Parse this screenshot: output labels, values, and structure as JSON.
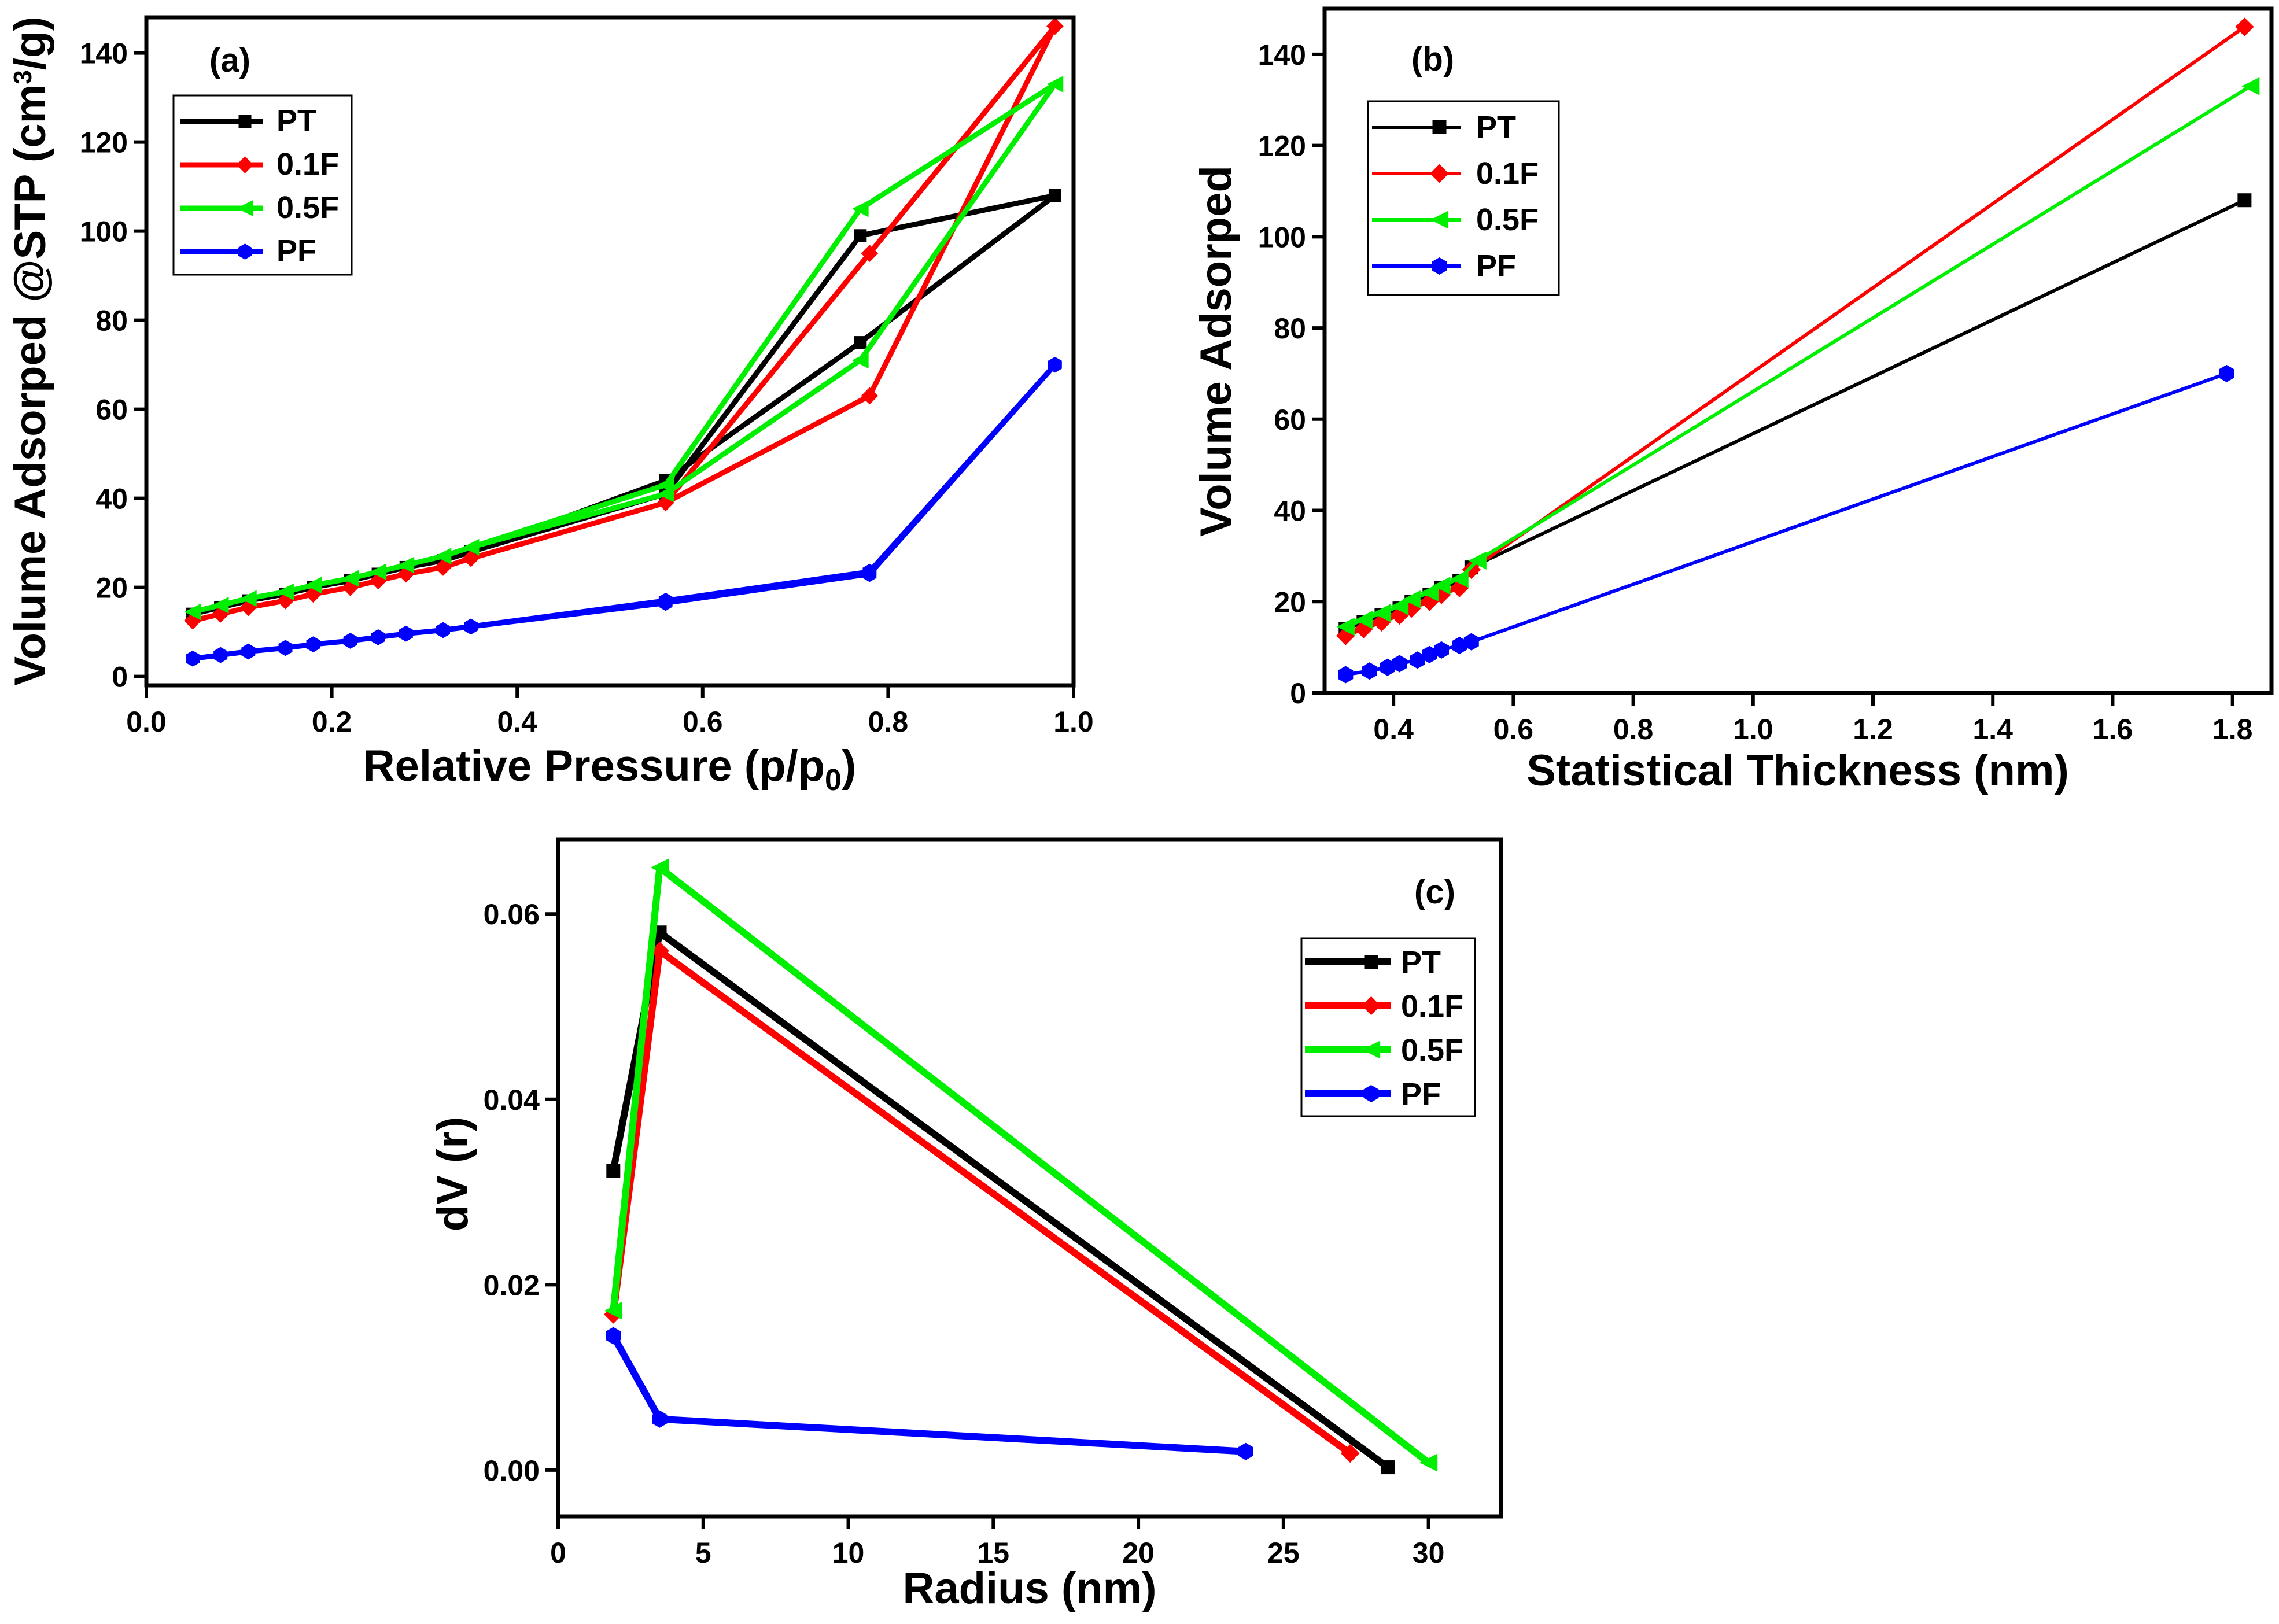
{
  "charts": [
    {
      "id": "a",
      "panel_label": "(a)",
      "xlabel": "Relative Pressure  (p/p",
      "xlabel_sub": "0",
      "xlabel_end": ")",
      "ylabel": "Volume Adsorped @STP (cm",
      "ylabel_sup": "3",
      "ylabel_end": "/g)",
      "xticks": [
        "0.0",
        "0.2",
        "0.4",
        "0.6",
        "0.8",
        "1.0"
      ],
      "yticks": [
        "0",
        "20",
        "40",
        "60",
        "80",
        "100",
        "120",
        "140"
      ],
      "legend": [
        "PT",
        "0.1F",
        "0.5F",
        "PF"
      ]
    },
    {
      "id": "b",
      "panel_label": "(b)",
      "xlabel": "Statistical Thickness  (nm)",
      "ylabel": "Volume Adsorped",
      "xticks": [
        "0.4",
        "0.6",
        "0.8",
        "1.0",
        "1.2",
        "1.4",
        "1.6",
        "1.8"
      ],
      "yticks": [
        "0",
        "20",
        "40",
        "60",
        "80",
        "100",
        "120",
        "140"
      ],
      "legend": [
        "PT",
        "0.1F",
        "0.5F",
        "PF"
      ]
    },
    {
      "id": "c",
      "panel_label": "(c)",
      "xlabel": "Radius  (nm)",
      "ylabel": "dV (r)",
      "xticks": [
        "0",
        "5",
        "10",
        "15",
        "20",
        "25",
        "30"
      ],
      "yticks": [
        "0.00",
        "0.02",
        "0.04",
        "0.06"
      ],
      "legend": [
        "PT",
        "0.1F",
        "0.5F",
        "PF"
      ]
    }
  ],
  "chart_data": [
    {
      "type": "line",
      "panel": "(a)",
      "xlabel": "Relative Pressure (p/p0)",
      "ylabel": "Volume Adsorped @STP (cm3/g)",
      "xlim": [
        0.0,
        1.0
      ],
      "ylim": [
        -2,
        148
      ],
      "series": [
        {
          "name": "PT",
          "color": "#000000",
          "marker": "square",
          "x": [
            0.05,
            0.08,
            0.11,
            0.15,
            0.18,
            0.22,
            0.25,
            0.28,
            0.32,
            0.35,
            0.56,
            0.77,
            0.98,
            0.77,
            0.56,
            0.35,
            0.32,
            0.28,
            0.25,
            0.22,
            0.18,
            0.15,
            0.11,
            0.08,
            0.05
          ],
          "y": [
            14,
            15.5,
            17,
            18.5,
            20,
            21.5,
            23,
            24.5,
            26,
            28,
            44,
            75,
            108,
            99,
            41,
            28,
            26,
            24.5,
            23,
            21.5,
            20,
            18.5,
            17,
            15.5,
            14
          ]
        },
        {
          "name": "0.1F",
          "color": "#ff0000",
          "marker": "diamond",
          "x": [
            0.05,
            0.08,
            0.11,
            0.15,
            0.18,
            0.22,
            0.25,
            0.28,
            0.32,
            0.35,
            0.56,
            0.78,
            0.98,
            0.78,
            0.56,
            0.35,
            0.32,
            0.28,
            0.25,
            0.22,
            0.18,
            0.15,
            0.11,
            0.08,
            0.05
          ],
          "y": [
            12.5,
            14,
            15.5,
            17,
            18.5,
            20,
            21.5,
            23,
            24.5,
            26.5,
            39,
            63,
            146,
            95,
            39,
            26.5,
            24.5,
            23,
            21.5,
            20,
            18.5,
            17,
            15.5,
            14,
            12.5
          ]
        },
        {
          "name": "0.5F",
          "color": "#00ee00",
          "marker": "triangle-left",
          "x": [
            0.05,
            0.08,
            0.11,
            0.15,
            0.18,
            0.22,
            0.25,
            0.28,
            0.32,
            0.35,
            0.56,
            0.77,
            0.98,
            0.77,
            0.56,
            0.35,
            0.32,
            0.28,
            0.25,
            0.22,
            0.18,
            0.15,
            0.11,
            0.08,
            0.05
          ],
          "y": [
            14.5,
            16,
            17.5,
            19,
            20.5,
            22,
            23.5,
            25,
            27,
            29,
            41,
            71,
            133,
            105,
            43,
            29,
            27,
            25,
            23.5,
            22,
            20.5,
            19,
            17.5,
            16,
            14.5
          ]
        },
        {
          "name": "PF",
          "color": "#0000ff",
          "marker": "hexagon",
          "x": [
            0.05,
            0.08,
            0.11,
            0.15,
            0.18,
            0.22,
            0.25,
            0.28,
            0.32,
            0.35,
            0.56,
            0.78,
            0.98,
            0.78,
            0.56,
            0.35,
            0.32,
            0.28,
            0.25,
            0.22,
            0.18,
            0.15,
            0.11,
            0.08,
            0.05
          ],
          "y": [
            4,
            4.8,
            5.6,
            6.4,
            7.2,
            8,
            8.8,
            9.6,
            10.4,
            11.2,
            17,
            23.5,
            70,
            23,
            16.5,
            11.2,
            10.4,
            9.6,
            8.8,
            8,
            7.2,
            6.4,
            5.6,
            4.8,
            4
          ]
        }
      ]
    },
    {
      "type": "line",
      "panel": "(b)",
      "xlabel": "Statistical Thickness (nm)",
      "ylabel": "Volume Adsorped",
      "xlim": [
        0.285,
        1.865
      ],
      "ylim": [
        0,
        150
      ],
      "series": [
        {
          "name": "PT",
          "color": "#000000",
          "marker": "square",
          "x": [
            0.32,
            0.35,
            0.38,
            0.41,
            0.43,
            0.46,
            0.48,
            0.51,
            0.53,
            1.82
          ],
          "y": [
            14,
            15.5,
            17,
            18.5,
            20,
            21.5,
            23,
            24.5,
            27.5,
            108
          ]
        },
        {
          "name": "0.1F",
          "color": "#ff0000",
          "marker": "diamond",
          "x": [
            0.32,
            0.35,
            0.38,
            0.41,
            0.43,
            0.46,
            0.48,
            0.51,
            0.53,
            1.82
          ],
          "y": [
            12.5,
            14,
            15.5,
            17,
            18.5,
            20,
            21.5,
            23,
            27,
            146
          ]
        },
        {
          "name": "0.5F",
          "color": "#00ee00",
          "marker": "triangle-left",
          "x": [
            0.32,
            0.35,
            0.38,
            0.41,
            0.43,
            0.46,
            0.48,
            0.51,
            0.54,
            1.83
          ],
          "y": [
            14.5,
            16,
            17.5,
            19,
            20.5,
            22,
            23.5,
            25,
            29,
            133
          ]
        },
        {
          "name": "PF",
          "color": "#0000ff",
          "marker": "hexagon",
          "x": [
            0.32,
            0.36,
            0.39,
            0.41,
            0.44,
            0.46,
            0.48,
            0.51,
            0.53,
            1.79
          ],
          "y": [
            4,
            4.8,
            5.6,
            6.4,
            7.2,
            8.4,
            9.4,
            10.4,
            11.2,
            70
          ]
        }
      ]
    },
    {
      "type": "line",
      "panel": "(c)",
      "xlabel": "Radius (nm)",
      "ylabel": "dV (r)",
      "xlim": [
        0,
        32.5
      ],
      "ylim": [
        -0.005,
        0.068
      ],
      "series": [
        {
          "name": "PT",
          "color": "#000000",
          "marker": "square",
          "x": [
            1.9,
            3.5,
            28.6
          ],
          "y": [
            0.0323,
            0.058,
            0.0003
          ]
        },
        {
          "name": "0.1F",
          "color": "#ff0000",
          "marker": "diamond",
          "x": [
            1.9,
            3.5,
            27.3
          ],
          "y": [
            0.0168,
            0.056,
            0.0018
          ]
        },
        {
          "name": "0.5F",
          "color": "#00ee00",
          "marker": "triangle-left",
          "x": [
            1.9,
            3.5,
            30.0
          ],
          "y": [
            0.0172,
            0.065,
            0.0008
          ]
        },
        {
          "name": "PF",
          "color": "#0000ff",
          "marker": "hexagon",
          "x": [
            1.9,
            3.5,
            23.7
          ],
          "y": [
            0.0145,
            0.0055,
            0.002
          ]
        }
      ]
    }
  ]
}
